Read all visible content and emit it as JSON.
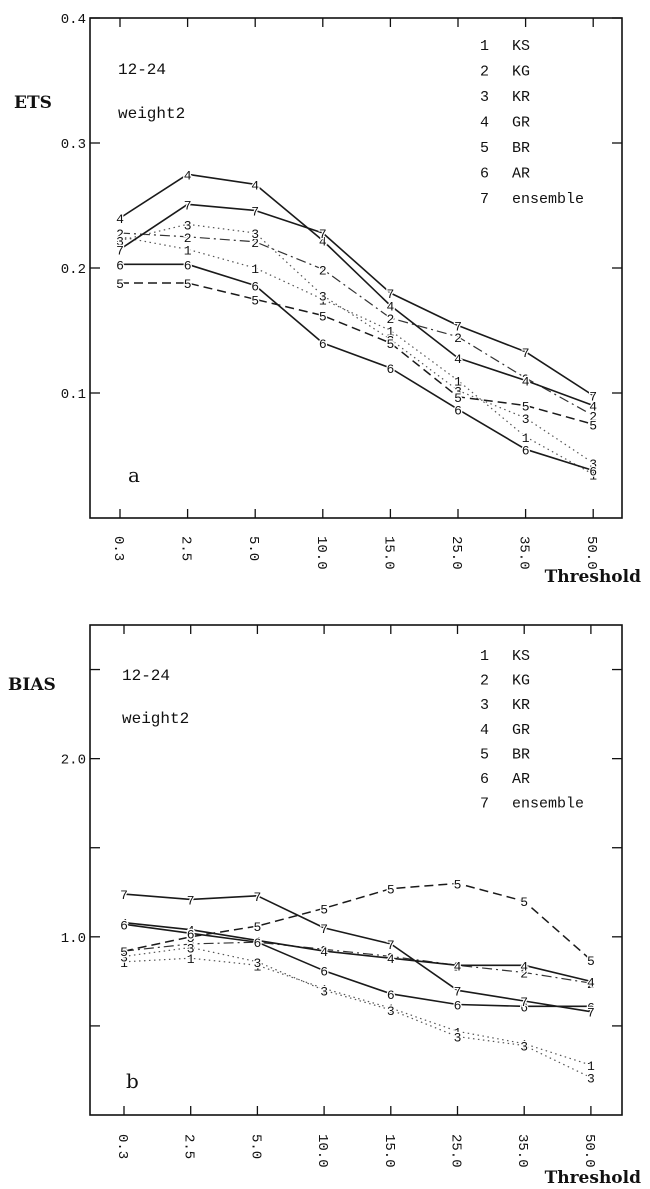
{
  "chart_data": [
    {
      "type": "line",
      "panel_letter": "a",
      "ylabel": "ETS",
      "xlabel": "Threshold",
      "categories": [
        "0.3",
        "2.5",
        "5.0",
        "10.0",
        "15.0",
        "25.0",
        "35.0",
        "50.0"
      ],
      "ylim": [
        0.0,
        0.4
      ],
      "yticks": [
        0.1,
        0.2,
        0.3,
        0.4
      ],
      "ytick_labels": [
        "0.1",
        "0.2",
        "0.3",
        "0.4"
      ],
      "annotations": [
        "12-24",
        "weight2"
      ],
      "legend_placement": "top-right",
      "series": [
        {
          "name": "KS",
          "marker": "1",
          "line": "dotted",
          "values": [
            0.225,
            0.215,
            0.2,
            0.175,
            0.15,
            0.11,
            0.065,
            0.035
          ]
        },
        {
          "name": "KG",
          "marker": "2",
          "line": "dashdot",
          "values": [
            0.228,
            0.225,
            0.221,
            0.199,
            0.16,
            0.145,
            0.112,
            0.082
          ]
        },
        {
          "name": "KR",
          "marker": "3",
          "line": "dotted",
          "values": [
            0.222,
            0.235,
            0.228,
            0.178,
            0.143,
            0.102,
            0.08,
            0.044
          ]
        },
        {
          "name": "GR",
          "marker": "4",
          "line": "solid",
          "values": [
            0.24,
            0.275,
            0.267,
            0.222,
            0.17,
            0.128,
            0.11,
            0.09
          ]
        },
        {
          "name": "BR",
          "marker": "5",
          "line": "dashed",
          "values": [
            0.188,
            0.188,
            0.175,
            0.162,
            0.14,
            0.097,
            0.09,
            0.075
          ]
        },
        {
          "name": "AR",
          "marker": "6",
          "line": "solid",
          "values": [
            0.203,
            0.203,
            0.186,
            0.14,
            0.12,
            0.087,
            0.055,
            0.038
          ]
        },
        {
          "name": "ensemble",
          "marker": "7",
          "line": "solid",
          "values": [
            0.215,
            0.251,
            0.246,
            0.228,
            0.18,
            0.154,
            0.133,
            0.098
          ]
        }
      ]
    },
    {
      "type": "line",
      "panel_letter": "b",
      "ylabel": "BIAS",
      "xlabel": "Threshold",
      "categories": [
        "0.3",
        "2.5",
        "5.0",
        "10.0",
        "15.0",
        "25.0",
        "35.0",
        "50.0"
      ],
      "ylim": [
        0.0,
        2.75
      ],
      "yticks": [
        0.5,
        1.0,
        1.5,
        2.0,
        2.5
      ],
      "ytick_labels": [
        "",
        "1.0",
        "",
        "2.0",
        ""
      ],
      "annotations": [
        "12-24",
        "weight2"
      ],
      "legend_placement": "top-right",
      "series": [
        {
          "name": "KS",
          "marker": "1",
          "line": "dotted",
          "values": [
            0.86,
            0.88,
            0.84,
            0.71,
            0.6,
            0.47,
            0.4,
            0.28
          ]
        },
        {
          "name": "KG",
          "marker": "2",
          "line": "dashdot",
          "values": [
            0.92,
            0.96,
            0.97,
            0.93,
            0.89,
            0.84,
            0.8,
            0.74
          ]
        },
        {
          "name": "KR",
          "marker": "3",
          "line": "dotted",
          "values": [
            0.89,
            0.94,
            0.86,
            0.7,
            0.59,
            0.44,
            0.39,
            0.21
          ]
        },
        {
          "name": "GR",
          "marker": "4",
          "line": "solid",
          "values": [
            1.08,
            1.04,
            0.98,
            0.92,
            0.88,
            0.84,
            0.84,
            0.75
          ]
        },
        {
          "name": "BR",
          "marker": "5",
          "line": "dashed",
          "values": [
            0.92,
            1.0,
            1.06,
            1.16,
            1.27,
            1.3,
            1.2,
            0.87
          ]
        },
        {
          "name": "AR",
          "marker": "6",
          "line": "solid",
          "values": [
            1.07,
            1.02,
            0.97,
            0.81,
            0.68,
            0.62,
            0.61,
            0.61
          ]
        },
        {
          "name": "ensemble",
          "marker": "7",
          "line": "solid",
          "values": [
            1.24,
            1.21,
            1.23,
            1.05,
            0.96,
            0.7,
            0.64,
            0.58
          ]
        }
      ]
    }
  ]
}
